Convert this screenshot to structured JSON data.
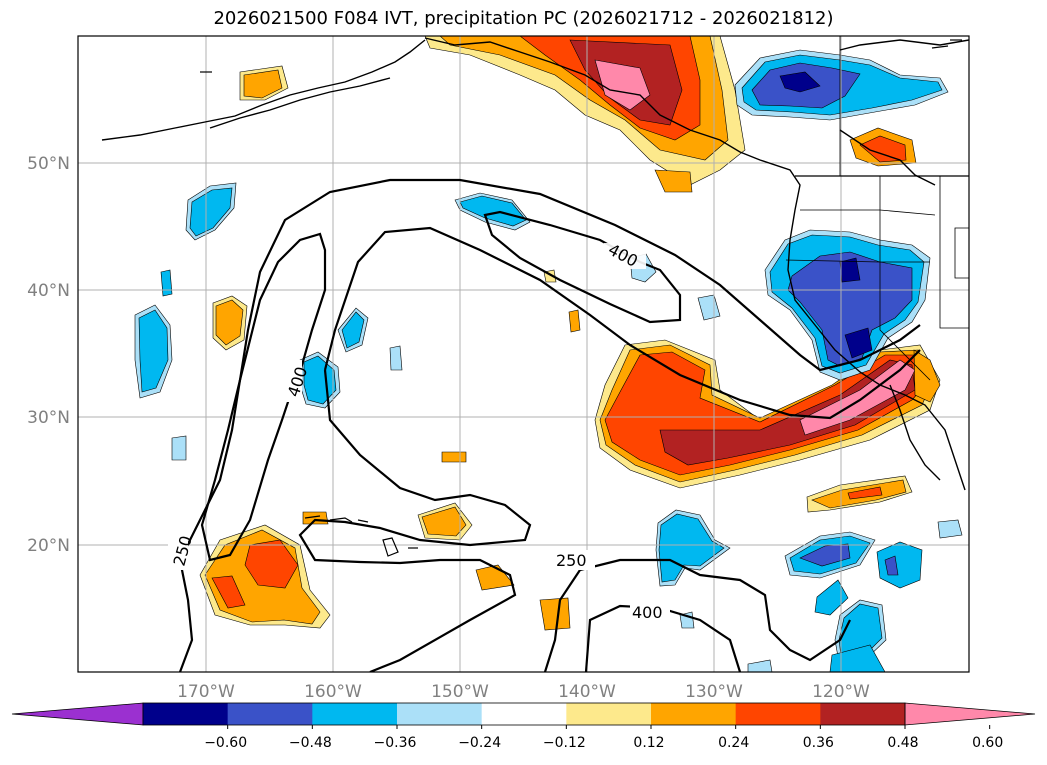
{
  "title": "2026021500 F084 IVT, precipitation PC (2026021712 - 2026021812)",
  "map": {
    "lon_labels": [
      "170°W",
      "160°W",
      "150°W",
      "140°W",
      "130°W",
      "120°W"
    ],
    "lat_labels": [
      "50°N",
      "40°N",
      "30°N",
      "20°N"
    ],
    "gridlines": true
  },
  "contours": {
    "variable": "IVT",
    "levels": [
      "250",
      "400",
      "400",
      "250",
      "400"
    ]
  },
  "colorbar": {
    "ticks": [
      "−0.60",
      "−0.48",
      "−0.36",
      "−0.24",
      "−0.12",
      "0.12",
      "0.24",
      "0.36",
      "0.48",
      "0.60"
    ],
    "colors": [
      "#9b30d0",
      "#00008b",
      "#3a52c8",
      "#00b8f0",
      "#abe0f8",
      "#ffffff",
      "#fde98c",
      "#ffa500",
      "#ff4500",
      "#b22222",
      "#ff88aa"
    ]
  }
}
